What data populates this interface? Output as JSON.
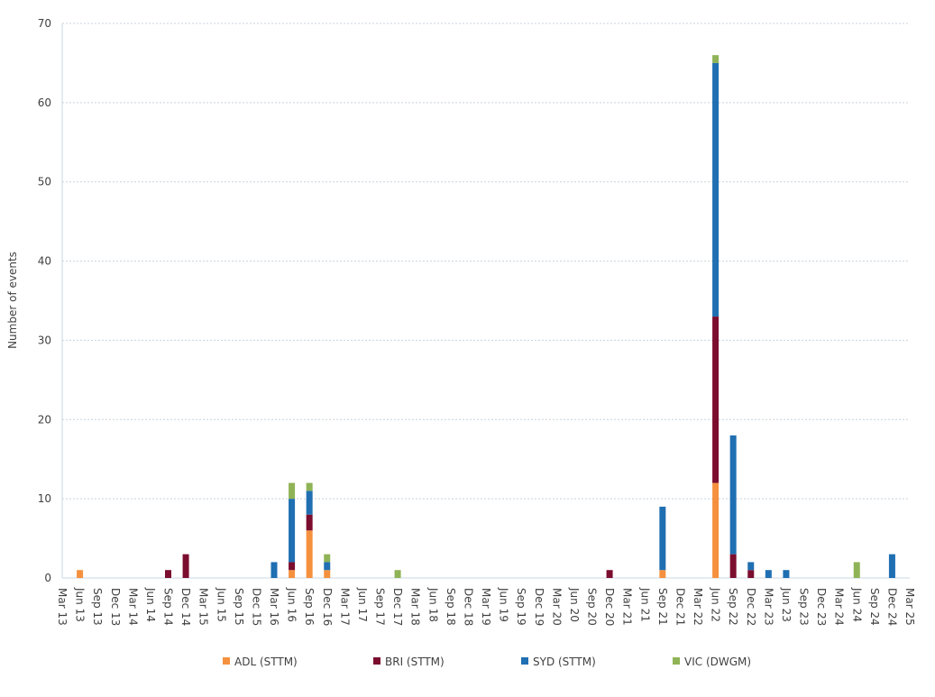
{
  "chart_data": {
    "type": "stacked-bar",
    "y_label": "Number of events",
    "categories": [
      "Mar 13",
      "Jun 13",
      "Sep 13",
      "Dec 13",
      "Mar 14",
      "Jun 14",
      "Sep 14",
      "Dec 14",
      "Mar 15",
      "Jun 15",
      "Sep 15",
      "Dec 15",
      "Mar 16",
      "Jun 16",
      "Sep 16",
      "Dec 16",
      "Mar 17",
      "Jun 17",
      "Sep 17",
      "Dec 17",
      "Mar 18",
      "Jun 18",
      "Sep 18",
      "Dec 18",
      "Mar 19",
      "Jun 19",
      "Sep 19",
      "Dec 19",
      "Mar 20",
      "Jun 20",
      "Sep 20",
      "Dec 20",
      "Mar 21",
      "Jun 21",
      "Sep 21",
      "Dec 21",
      "Mar 22",
      "Jun 22",
      "Sep 22",
      "Dec 22",
      "Mar 23",
      "Jun 23",
      "Sep 23",
      "Dec 23",
      "Mar 24",
      "Jun 24",
      "Sep 24",
      "Dec 24",
      "Mar 25"
    ],
    "series": [
      {
        "name": "ADL (STTM)",
        "color": "#f5913e",
        "values": [
          0,
          1,
          0,
          0,
          0,
          0,
          0,
          0,
          0,
          0,
          0,
          0,
          0,
          1,
          6,
          1,
          0,
          0,
          0,
          0,
          0,
          0,
          0,
          0,
          0,
          0,
          0,
          0,
          0,
          0,
          0,
          0,
          0,
          0,
          1,
          0,
          0,
          12,
          0,
          0,
          0,
          0,
          0,
          0,
          0,
          0,
          0,
          0,
          0
        ]
      },
      {
        "name": "BRI (STTM)",
        "color": "#7b0d2f",
        "values": [
          0,
          0,
          0,
          0,
          0,
          0,
          1,
          3,
          0,
          0,
          0,
          0,
          0,
          1,
          2,
          0,
          0,
          0,
          0,
          0,
          0,
          0,
          0,
          0,
          0,
          0,
          0,
          0,
          0,
          0,
          0,
          1,
          0,
          0,
          0,
          0,
          0,
          21,
          3,
          1,
          0,
          0,
          0,
          0,
          0,
          0,
          0,
          0,
          0
        ]
      },
      {
        "name": "SYD (STTM)",
        "color": "#1f6fb2",
        "values": [
          0,
          0,
          0,
          0,
          0,
          0,
          0,
          0,
          0,
          0,
          0,
          0,
          2,
          8,
          3,
          1,
          0,
          0,
          0,
          0,
          0,
          0,
          0,
          0,
          0,
          0,
          0,
          0,
          0,
          0,
          0,
          0,
          0,
          0,
          8,
          0,
          0,
          32,
          15,
          1,
          1,
          1,
          0,
          0,
          0,
          0,
          0,
          3,
          0
        ]
      },
      {
        "name": "VIC (DWGM)",
        "color": "#8fb356",
        "values": [
          0,
          0,
          0,
          0,
          0,
          0,
          0,
          0,
          0,
          0,
          0,
          0,
          0,
          2,
          1,
          1,
          0,
          0,
          0,
          1,
          0,
          0,
          0,
          0,
          0,
          0,
          0,
          0,
          0,
          0,
          0,
          0,
          0,
          0,
          0,
          0,
          0,
          1,
          0,
          0,
          0,
          0,
          0,
          0,
          0,
          2,
          0,
          0,
          0
        ]
      }
    ],
    "ylim": [
      0,
      70
    ],
    "yticks": [
      0,
      10,
      20,
      30,
      40,
      50,
      60,
      70
    ],
    "grid": true,
    "legend": "bottom"
  }
}
